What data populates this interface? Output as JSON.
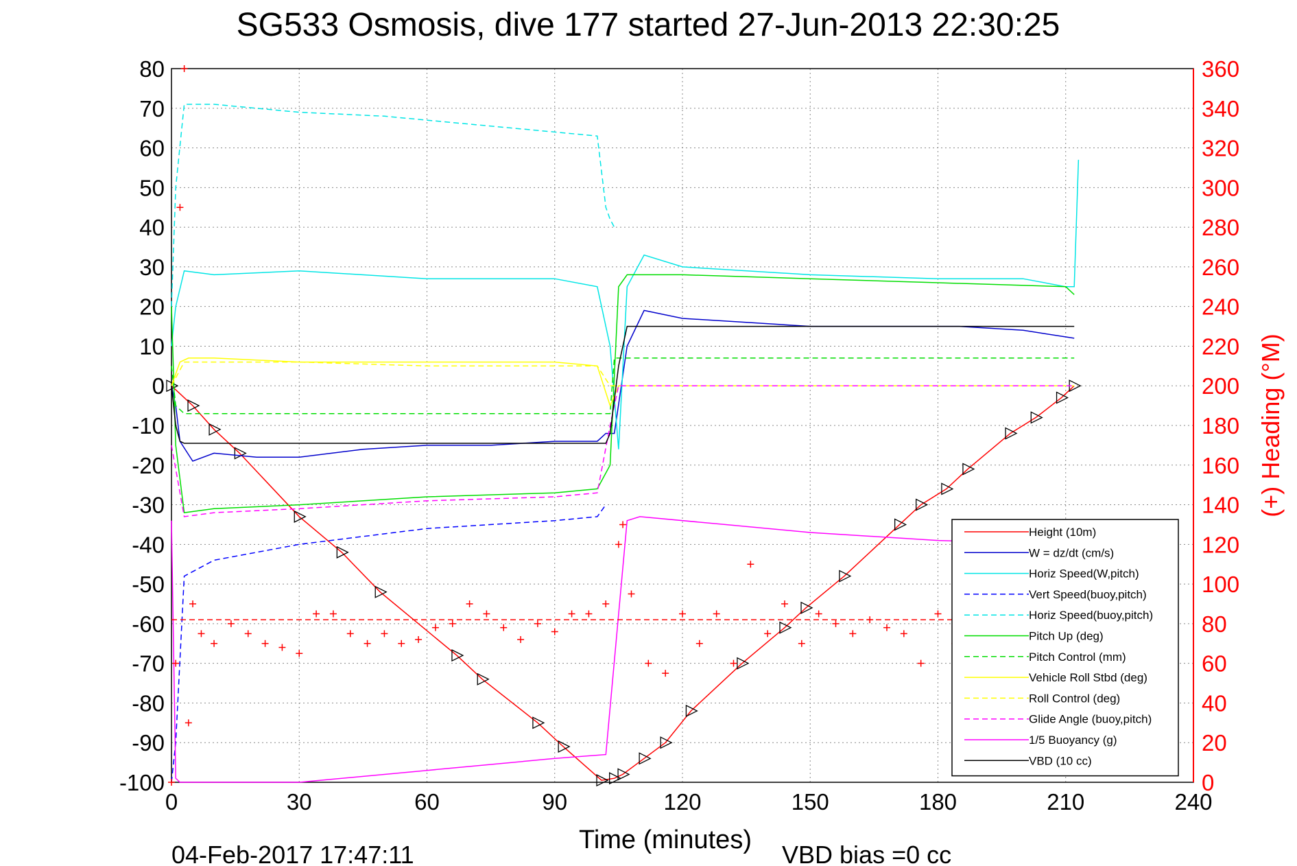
{
  "footer": {
    "timestamp": "04-Feb-2017 17:47:11",
    "vbd_bias": "VBD bias =0 cc"
  },
  "chart_data": {
    "type": "line",
    "title": "SG533 Osmosis, dive 177 started 27-Jun-2013 22:30:25",
    "xlabel": "Time (minutes)",
    "ylabel": "",
    "y2label": "(+) Heading (°M)",
    "xlim": [
      0,
      240
    ],
    "ylim": [
      -100,
      80
    ],
    "y2lim": [
      0,
      360
    ],
    "xticks": [
      "0",
      "30",
      "60",
      "90",
      "120",
      "150",
      "180",
      "210",
      "240"
    ],
    "yticks": [
      "80",
      "70",
      "60",
      "50",
      "40",
      "30",
      "20",
      "10",
      "0",
      "-10",
      "-20",
      "-30",
      "-40",
      "-50",
      "-60",
      "-70",
      "-80",
      "-90",
      "-100"
    ],
    "y2ticks": [
      "360",
      "340",
      "320",
      "300",
      "280",
      "260",
      "240",
      "220",
      "200",
      "180",
      "160",
      "140",
      "120",
      "100",
      "80",
      "60",
      "40",
      "20",
      "0"
    ],
    "grid": true,
    "legend_position": "bottom-right",
    "colors": {
      "height": "#ff0000",
      "w": "#0000cc",
      "horiz_speed": "#00e5e5",
      "vert_speed_buoy": "#0000ff",
      "horiz_speed_buoy": "#00e5e5",
      "pitch_up": "#00dd00",
      "pitch_control": "#00dd00",
      "roll": "#ffff00",
      "roll_control": "#ffff00",
      "glide_angle": "#ff00ff",
      "buoyancy": "#ff00ff",
      "vbd": "#000000",
      "heading": "#ff0000"
    },
    "series": [
      {
        "name": "Height (10m)",
        "axis": "left",
        "style": "solid",
        "color_key": "height",
        "marker": "triangle",
        "x": [
          0,
          5,
          10,
          16,
          30,
          40,
          49,
          67,
          73,
          86,
          92,
          101,
          104,
          106,
          111,
          116,
          122,
          134,
          144,
          149,
          158,
          171,
          176,
          182,
          187,
          197,
          203,
          209,
          212
        ],
        "y": [
          0,
          -5,
          -11,
          -17,
          -33,
          -42,
          -52,
          -68,
          -74,
          -85,
          -91,
          -99.5,
          -99,
          -98,
          -94,
          -90,
          -82,
          -70,
          -61,
          -56,
          -48,
          -35,
          -30,
          -26,
          -21,
          -12,
          -8,
          -3,
          0
        ]
      },
      {
        "name": "W = dz/dt (cm/s)",
        "axis": "left",
        "style": "solid",
        "color_key": "w",
        "x": [
          0,
          1,
          2,
          5,
          10,
          20,
          30,
          45,
          60,
          75,
          90,
          100,
          102,
          104,
          107,
          111,
          120,
          135,
          150,
          170,
          185,
          200,
          212
        ],
        "y": [
          0,
          -5,
          -14,
          -19,
          -17,
          -18,
          -18,
          -16,
          -15,
          -15,
          -14,
          -14,
          -12,
          -12,
          10,
          19,
          17,
          16,
          15,
          15,
          15,
          14,
          12
        ]
      },
      {
        "name": "Horiz Speed(W,pitch)",
        "axis": "left",
        "style": "solid",
        "color_key": "horiz_speed",
        "x": [
          0,
          1,
          3,
          10,
          30,
          60,
          90,
          100,
          103,
          105,
          107,
          111,
          120,
          150,
          180,
          200,
          210,
          212,
          213
        ],
        "y": [
          10,
          20,
          29,
          28,
          29,
          27,
          27,
          25,
          10,
          -16,
          25,
          33,
          30,
          28,
          27,
          27,
          25,
          25,
          57
        ]
      },
      {
        "name": "Vert Speed(buoy,pitch)",
        "axis": "left",
        "style": "dashed",
        "color_key": "vert_speed_buoy",
        "x": [
          0,
          1,
          3,
          10,
          30,
          60,
          90,
          100,
          102
        ],
        "y": [
          -100,
          -90,
          -48,
          -44,
          -40,
          -36,
          -34,
          -33,
          -30
        ]
      },
      {
        "name": "Horiz Speed(buoy,pitch)",
        "axis": "left",
        "style": "dashed",
        "color_key": "horiz_speed_buoy",
        "x": [
          0,
          1,
          3,
          10,
          30,
          50,
          70,
          90,
          100,
          102,
          103,
          104
        ],
        "y": [
          20,
          50,
          71,
          71,
          69,
          68,
          66,
          64,
          63,
          45,
          42,
          40
        ]
      },
      {
        "name": "Pitch Up (deg)",
        "axis": "left",
        "style": "solid",
        "color_key": "pitch_up",
        "x": [
          0,
          1,
          3,
          10,
          30,
          60,
          90,
          100,
          103,
          105,
          107,
          120,
          150,
          180,
          210,
          212
        ],
        "y": [
          20,
          -15,
          -32,
          -31,
          -30,
          -28,
          -27,
          -26,
          -20,
          25,
          28,
          28,
          27,
          26,
          25,
          23
        ]
      },
      {
        "name": "Pitch Control (mm)",
        "axis": "left",
        "style": "dashed",
        "color_key": "pitch_control",
        "x": [
          0,
          1,
          3,
          30,
          60,
          100,
          103,
          104,
          105,
          107,
          212
        ],
        "y": [
          5,
          -5,
          -7,
          -7,
          -7,
          -7,
          -7,
          7,
          7,
          7,
          7
        ]
      },
      {
        "name": "Vehicle Roll Stbd (deg)",
        "axis": "left",
        "style": "solid",
        "color_key": "roll",
        "x": [
          0,
          2,
          4,
          10,
          30,
          60,
          90,
          100,
          103,
          105,
          107,
          120,
          150,
          180,
          212
        ],
        "y": [
          0,
          6,
          7,
          7,
          6,
          6,
          6,
          5,
          -5,
          0,
          0,
          0,
          0,
          0,
          0
        ]
      },
      {
        "name": "Roll Control (deg)",
        "axis": "left",
        "style": "dashed",
        "color_key": "roll_control",
        "x": [
          0,
          3,
          30,
          60,
          90,
          100,
          103,
          105,
          212
        ],
        "y": [
          0,
          6,
          6,
          5,
          5,
          5,
          0,
          0,
          0
        ]
      },
      {
        "name": "Glide Angle (buoy,pitch)",
        "axis": "left",
        "style": "dashed",
        "color_key": "glide_angle",
        "x": [
          0,
          3,
          10,
          30,
          60,
          90,
          100,
          103,
          105,
          212
        ],
        "y": [
          -15,
          -33,
          -32,
          -31,
          -29,
          -28,
          -27,
          -10,
          0,
          0
        ]
      },
      {
        "name": "1/5 Buoyancy (g)",
        "axis": "left",
        "style": "solid",
        "color_key": "buoyancy",
        "x": [
          0,
          1,
          2,
          30,
          60,
          90,
          102,
          107,
          110,
          130,
          150,
          180,
          212
        ],
        "y": [
          -34,
          -99,
          -100,
          -100,
          -97,
          -94,
          -93,
          -34,
          -33,
          -35,
          -37,
          -39,
          -40
        ]
      },
      {
        "name": "VBD (10 cc)",
        "axis": "left",
        "style": "solid",
        "color_key": "vbd",
        "x": [
          0,
          1,
          2,
          3,
          102,
          103,
          105,
          107,
          212
        ],
        "y": [
          0,
          -10,
          -14,
          -14.5,
          -14.5,
          -12,
          5,
          15,
          15
        ]
      },
      {
        "name": "Heading",
        "axis": "right",
        "style": "markers",
        "color_key": "heading",
        "marker": "plus",
        "x": [
          0,
          1,
          2,
          3,
          4,
          5,
          7,
          10,
          14,
          18,
          22,
          26,
          30,
          34,
          38,
          42,
          46,
          50,
          54,
          58,
          62,
          66,
          70,
          74,
          78,
          82,
          86,
          90,
          94,
          98,
          102,
          105,
          106,
          108,
          112,
          116,
          120,
          124,
          128,
          132,
          136,
          140,
          144,
          148,
          152,
          156,
          160,
          164,
          168,
          172,
          176,
          180,
          184,
          188,
          192,
          196,
          200,
          204,
          208,
          212
        ],
        "y": [
          0,
          60,
          290,
          360,
          30,
          90,
          75,
          70,
          80,
          75,
          70,
          68,
          65,
          85,
          85,
          75,
          70,
          75,
          70,
          72,
          78,
          80,
          90,
          85,
          78,
          72,
          80,
          76,
          85,
          85,
          90,
          120,
          130,
          95,
          60,
          55,
          85,
          70,
          85,
          60,
          110,
          75,
          90,
          70,
          85,
          80,
          75,
          82,
          78,
          75,
          60,
          85,
          70,
          75,
          80,
          72,
          78,
          70,
          75,
          80
        ]
      },
      {
        "name": "",
        "axis": "right",
        "style": "dashed-reference",
        "color_key": "heading",
        "x": [
          0,
          212
        ],
        "y": [
          82,
          82
        ]
      }
    ]
  }
}
